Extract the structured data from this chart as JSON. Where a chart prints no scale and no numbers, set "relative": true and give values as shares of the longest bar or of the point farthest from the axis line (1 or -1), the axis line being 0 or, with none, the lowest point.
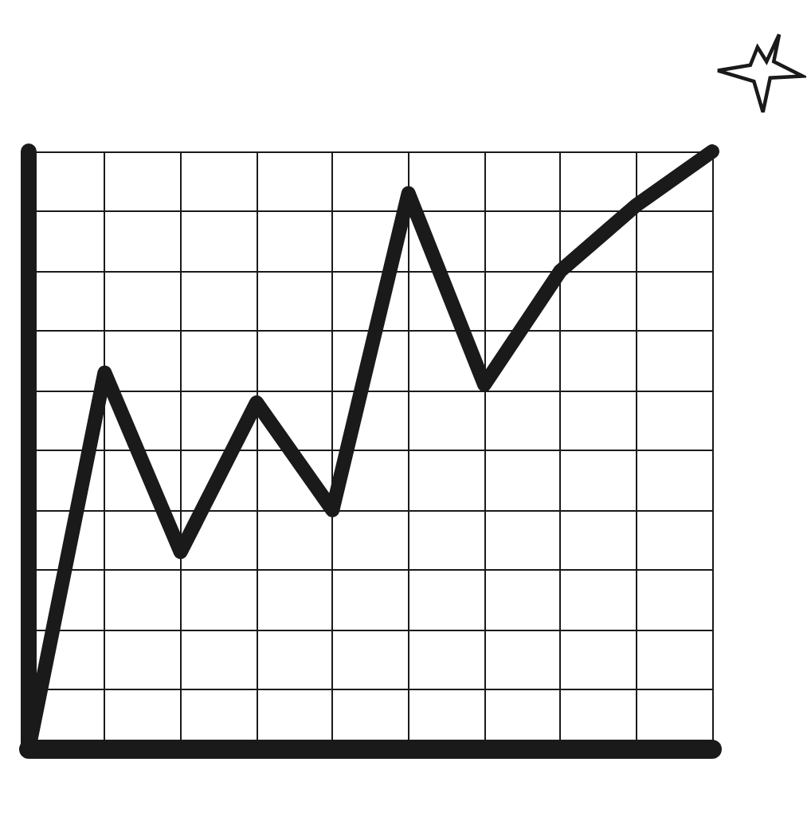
{
  "chart_data": {
    "type": "line",
    "relative": true,
    "categories": [
      null,
      null,
      null,
      null,
      null,
      null,
      null,
      null,
      null,
      null
    ],
    "series": [
      {
        "color": "#1a1a1a",
        "values": [
          0,
          0.63,
          0.33,
          0.58,
          0.4,
          0.93,
          0.61,
          0.8,
          0.91,
          1
        ]
      }
    ],
    "grid": true,
    "line_style": "solid"
  }
}
